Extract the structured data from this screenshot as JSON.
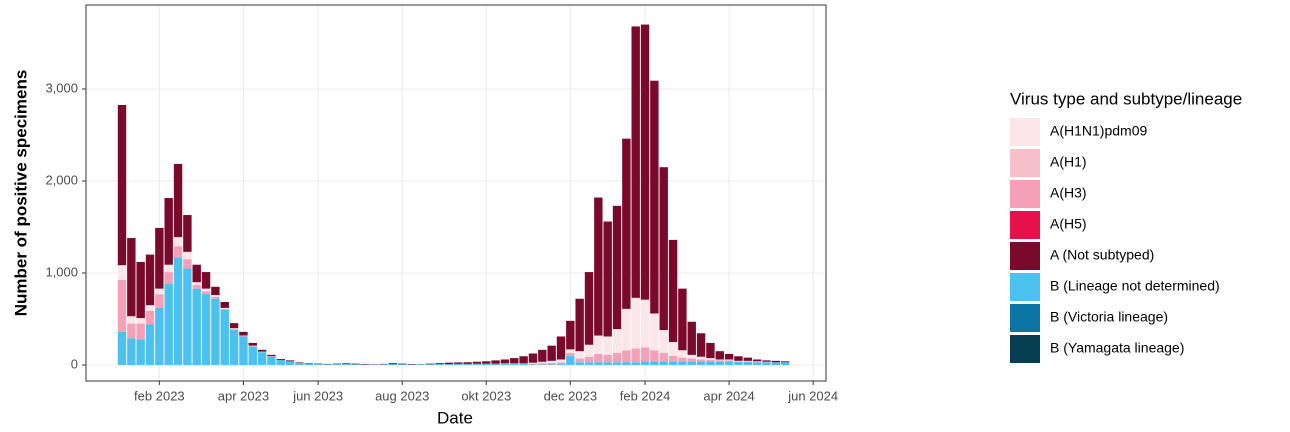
{
  "chart_data": {
    "type": "stacked_bar",
    "x_label": "Date",
    "y_label": "Number of positive specimens",
    "legend_title": "Virus type and subtype/lineage",
    "legend_position": "right",
    "grid": true,
    "ylim": [
      -174,
      3913
    ],
    "yticks": [
      0,
      {
        "value": 1000,
        "label": "1,000"
      },
      {
        "value": 2000,
        "label": "2,000"
      },
      {
        "value": 3000,
        "label": "3,000"
      }
    ],
    "categories": [
      null,
      null,
      null,
      null,
      "feb 2023",
      null,
      null,
      null,
      null,
      null,
      null,
      null,
      null,
      "apr 2023",
      null,
      null,
      null,
      null,
      null,
      null,
      null,
      "jun 2023",
      null,
      null,
      null,
      null,
      null,
      null,
      null,
      null,
      "aug 2023",
      null,
      null,
      null,
      null,
      null,
      null,
      null,
      null,
      "okt 2023",
      null,
      null,
      null,
      null,
      null,
      null,
      null,
      null,
      "dec 2023",
      null,
      null,
      null,
      null,
      null,
      null,
      null,
      "feb 2024",
      null,
      null,
      null,
      null,
      null,
      null,
      null,
      null,
      "apr 2024",
      null,
      null,
      null,
      null,
      null,
      null,
      null,
      null,
      "jun 2024"
    ],
    "series": [
      {
        "name": "A(H1N1)pdm09",
        "color": "#fde6ea",
        "values": [
          160,
          80,
          60,
          60,
          60,
          80,
          100,
          80,
          30,
          30,
          20,
          10,
          10,
          5,
          5,
          5,
          5,
          0,
          0,
          0,
          0,
          0,
          0,
          0,
          0,
          0,
          0,
          0,
          0,
          0,
          0,
          0,
          0,
          0,
          0,
          0,
          0,
          0,
          0,
          0,
          0,
          0,
          0,
          0,
          10,
          15,
          20,
          30,
          40,
          80,
          130,
          200,
          200,
          260,
          450,
          550,
          520,
          400,
          250,
          150,
          80,
          40,
          30,
          20,
          10,
          10,
          5,
          5,
          5,
          5,
          0,
          0,
          null,
          null,
          null
        ]
      },
      {
        "name": "A(H1)",
        "color": "#f7bfc7",
        "values": [
          0,
          0,
          0,
          0,
          0,
          0,
          0,
          0,
          0,
          0,
          0,
          0,
          0,
          0,
          0,
          0,
          0,
          0,
          0,
          0,
          0,
          0,
          0,
          0,
          0,
          0,
          0,
          0,
          0,
          0,
          0,
          0,
          0,
          0,
          0,
          0,
          0,
          0,
          0,
          0,
          0,
          0,
          0,
          0,
          0,
          0,
          0,
          0,
          0,
          0,
          0,
          0,
          0,
          0,
          0,
          0,
          0,
          0,
          0,
          0,
          0,
          0,
          0,
          0,
          0,
          0,
          0,
          0,
          0,
          0,
          0,
          0,
          null,
          null,
          null
        ]
      },
      {
        "name": "A(H3)",
        "color": "#f4a1b7",
        "values": [
          565,
          160,
          170,
          150,
          150,
          130,
          120,
          100,
          40,
          30,
          20,
          10,
          10,
          5,
          5,
          0,
          0,
          0,
          0,
          0,
          0,
          0,
          0,
          0,
          0,
          0,
          0,
          0,
          0,
          0,
          0,
          0,
          0,
          0,
          0,
          0,
          0,
          0,
          0,
          0,
          0,
          0,
          0,
          0,
          10,
          15,
          20,
          20,
          30,
          40,
          60,
          90,
          80,
          100,
          130,
          150,
          150,
          120,
          90,
          60,
          40,
          30,
          20,
          15,
          10,
          10,
          5,
          5,
          5,
          0,
          0,
          0,
          null,
          null,
          null
        ]
      },
      {
        "name": "A(H5)",
        "color": "#e6104a",
        "values": [
          0,
          0,
          0,
          0,
          0,
          0,
          0,
          0,
          0,
          0,
          0,
          0,
          0,
          0,
          0,
          0,
          0,
          0,
          0,
          0,
          0,
          0,
          0,
          0,
          0,
          0,
          0,
          0,
          0,
          0,
          0,
          0,
          0,
          0,
          0,
          0,
          0,
          0,
          0,
          0,
          0,
          0,
          0,
          0,
          0,
          0,
          0,
          0,
          0,
          0,
          0,
          0,
          0,
          0,
          0,
          0,
          0,
          0,
          0,
          0,
          0,
          0,
          0,
          0,
          0,
          0,
          0,
          0,
          0,
          0,
          0,
          0,
          null,
          null,
          null
        ]
      },
      {
        "name": "A (Not subtyped)",
        "color": "#7a0a2b",
        "values": [
          1741,
          850,
          610,
          550,
          660,
          725,
          795,
          400,
          190,
          180,
          90,
          65,
          55,
          40,
          30,
          20,
          15,
          10,
          10,
          5,
          5,
          5,
          4,
          5,
          8,
          7,
          5,
          3,
          4,
          10,
          7,
          5,
          3,
          7,
          10,
          15,
          16,
          18,
          20,
          25,
          35,
          40,
          55,
          75,
          100,
          130,
          165,
          250,
          310,
          570,
          790,
          1500,
          1250,
          1340,
          1850,
          2950,
          2990,
          2530,
          1770,
          1110,
          670,
          360,
          255,
          165,
          90,
          60,
          50,
          35,
          20,
          15,
          15,
          10,
          null,
          null,
          null
        ]
      },
      {
        "name": "B (Lineage not determined)",
        "color": "#4cc1ee",
        "values": [
          360,
          290,
          280,
          440,
          620,
          880,
          1170,
          1050,
          830,
          770,
          720,
          600,
          380,
          310,
          200,
          140,
          90,
          55,
          40,
          25,
          15,
          10,
          8,
          10,
          10,
          8,
          5,
          5,
          8,
          10,
          8,
          5,
          5,
          8,
          10,
          10,
          12,
          12,
          15,
          15,
          15,
          20,
          20,
          20,
          5,
          5,
          5,
          10,
          100,
          30,
          30,
          30,
          30,
          30,
          30,
          30,
          40,
          40,
          40,
          40,
          40,
          40,
          40,
          40,
          40,
          40,
          35,
          35,
          30,
          30,
          30,
          30,
          null,
          null,
          null
        ]
      },
      {
        "name": "B (Victoria lineage)",
        "color": "#0b76a6",
        "values": [
          0,
          0,
          0,
          0,
          0,
          0,
          0,
          0,
          0,
          0,
          0,
          0,
          0,
          0,
          0,
          0,
          0,
          0,
          0,
          0,
          0,
          0,
          0,
          0,
          0,
          0,
          0,
          0,
          0,
          0,
          0,
          0,
          0,
          0,
          0,
          0,
          0,
          0,
          0,
          0,
          0,
          0,
          0,
          0,
          0,
          0,
          0,
          0,
          0,
          0,
          0,
          0,
          0,
          0,
          0,
          0,
          0,
          0,
          0,
          0,
          0,
          0,
          0,
          0,
          0,
          0,
          0,
          0,
          0,
          0,
          0,
          0,
          null,
          null,
          null
        ]
      },
      {
        "name": "B (Yamagata lineage)",
        "color": "#073f52",
        "values": [
          0,
          0,
          0,
          0,
          0,
          0,
          0,
          0,
          0,
          0,
          0,
          0,
          0,
          0,
          0,
          0,
          0,
          0,
          0,
          0,
          0,
          0,
          0,
          0,
          0,
          0,
          0,
          0,
          0,
          0,
          0,
          0,
          0,
          0,
          0,
          0,
          0,
          0,
          0,
          0,
          0,
          0,
          0,
          0,
          0,
          0,
          0,
          0,
          0,
          0,
          0,
          0,
          0,
          0,
          0,
          0,
          0,
          0,
          0,
          0,
          0,
          0,
          0,
          0,
          0,
          0,
          0,
          0,
          0,
          0,
          0,
          0,
          null,
          null,
          null
        ]
      }
    ]
  }
}
